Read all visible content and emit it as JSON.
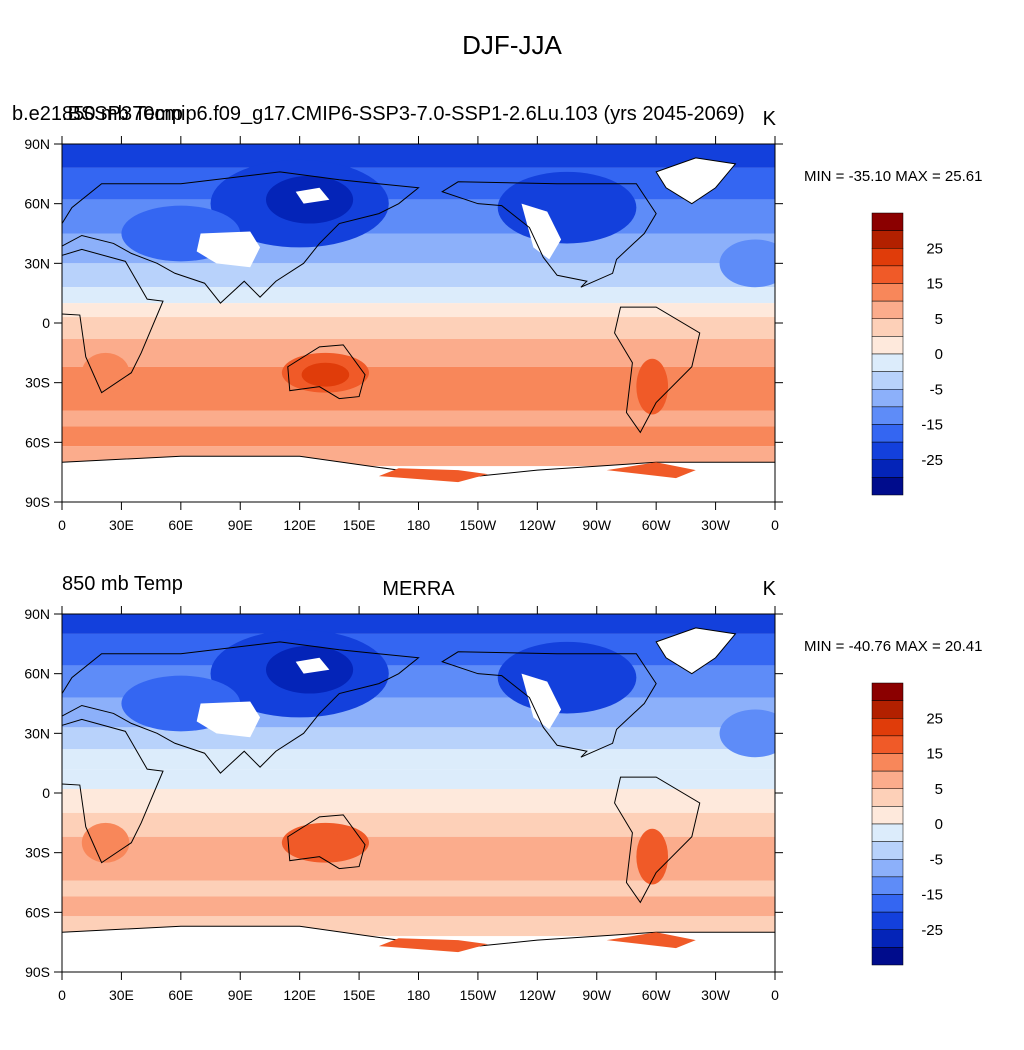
{
  "title": "DJF-JJA",
  "panels": [
    {
      "left_label": "b.e21.BSSP370cmip6.f09_g17.CMIP6-SSP3-7.0-SSP1-2.6Lu.103 (yrs 2045-2069)",
      "center_label": "",
      "right_label": "K",
      "overlap_label": "850 mb Temp",
      "min_max": "MIN = -35.10 MAX =  25.61"
    },
    {
      "left_label": "850 mb Temp",
      "center_label": "MERRA",
      "right_label": "K",
      "min_max": "MIN = -40.76 MAX =  20.41"
    }
  ],
  "axes": {
    "lat_ticks": [
      "90N",
      "60N",
      "30N",
      "0",
      "30S",
      "60S",
      "90S"
    ],
    "lon_ticks": [
      "0",
      "30E",
      "60E",
      "90E",
      "120E",
      "150E",
      "180",
      "150W",
      "120W",
      "90W",
      "60W",
      "30W",
      "0"
    ]
  },
  "colorbar": {
    "labels": [
      "25",
      "15",
      "5",
      "0",
      "-5",
      "-15",
      "-25"
    ],
    "colors": [
      "#8b0000",
      "#b22000",
      "#e03c0a",
      "#f05a28",
      "#f8875a",
      "#fbac8c",
      "#fdd0b8",
      "#fee9dc",
      "#dcecfb",
      "#b8d2fb",
      "#8cb0fa",
      "#5e8cf8",
      "#3466f2",
      "#1340dc",
      "#0424b8",
      "#000c8c"
    ]
  },
  "chart_data": {
    "type": "heatmap",
    "title": "DJF-JJA",
    "variable": "850 mb Temp",
    "units": "K",
    "contour_levels": [
      -30,
      -25,
      -20,
      -15,
      -10,
      -5,
      -2,
      0,
      2,
      5,
      10,
      15,
      20,
      25,
      30
    ],
    "maps": [
      {
        "name": "b.e21.BSSP370cmip6.f09_g17.CMIP6-SSP3-7.0-SSP1-2.6Lu.103 (yrs 2045-2069)",
        "min": -35.1,
        "max": 25.61
      },
      {
        "name": "MERRA",
        "min": -40.76,
        "max": 20.41
      }
    ],
    "xlim": [
      0,
      360
    ],
    "ylim": [
      -90,
      90
    ]
  }
}
